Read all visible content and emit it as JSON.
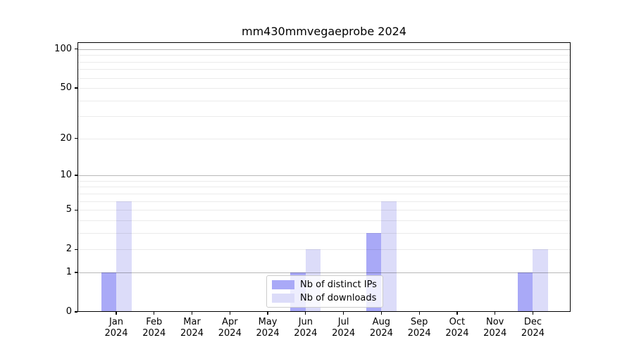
{
  "figure": {
    "background": "#ffffff"
  },
  "chart_data": {
    "type": "bar",
    "title": "mm430mmvegaeprobe 2024",
    "categories": [
      {
        "month": "Jan",
        "year": "2024"
      },
      {
        "month": "Feb",
        "year": "2024"
      },
      {
        "month": "Mar",
        "year": "2024"
      },
      {
        "month": "Apr",
        "year": "2024"
      },
      {
        "month": "May",
        "year": "2024"
      },
      {
        "month": "Jun",
        "year": "2024"
      },
      {
        "month": "Jul",
        "year": "2024"
      },
      {
        "month": "Aug",
        "year": "2024"
      },
      {
        "month": "Sep",
        "year": "2024"
      },
      {
        "month": "Oct",
        "year": "2024"
      },
      {
        "month": "Nov",
        "year": "2024"
      },
      {
        "month": "Dec",
        "year": "2024"
      }
    ],
    "series": [
      {
        "name": "Nb of distinct IPs",
        "color": "#a9a9f7",
        "values": [
          1,
          0,
          0,
          0,
          0,
          1,
          0,
          3,
          0,
          0,
          0,
          1
        ]
      },
      {
        "name": "Nb of downloads",
        "color": "#dcdcf9",
        "values": [
          6,
          0,
          0,
          0,
          0,
          2,
          0,
          6,
          0,
          0,
          0,
          2
        ]
      }
    ],
    "xlabel": "",
    "ylabel": "",
    "yscale": "log1p",
    "ylim": [
      0,
      113
    ],
    "yticks": [
      0,
      1,
      2,
      5,
      10,
      20,
      50,
      100
    ],
    "major_gridlines": [
      1,
      10,
      100
    ],
    "minor_gridlines": [
      2,
      3,
      4,
      5,
      6,
      7,
      8,
      9,
      20,
      30,
      40,
      50,
      60,
      70,
      80,
      90
    ],
    "grid": true,
    "legend_position": "inside-bottom-center"
  },
  "colors": {
    "axis": "#000000",
    "text": "#000000",
    "major_grid": "rgba(0,0,0,0.28)",
    "minor_grid": "rgba(0,0,0,0.08)",
    "legend_border": "#cccccc",
    "legend_background": "rgba(255,255,255,0.8)"
  }
}
